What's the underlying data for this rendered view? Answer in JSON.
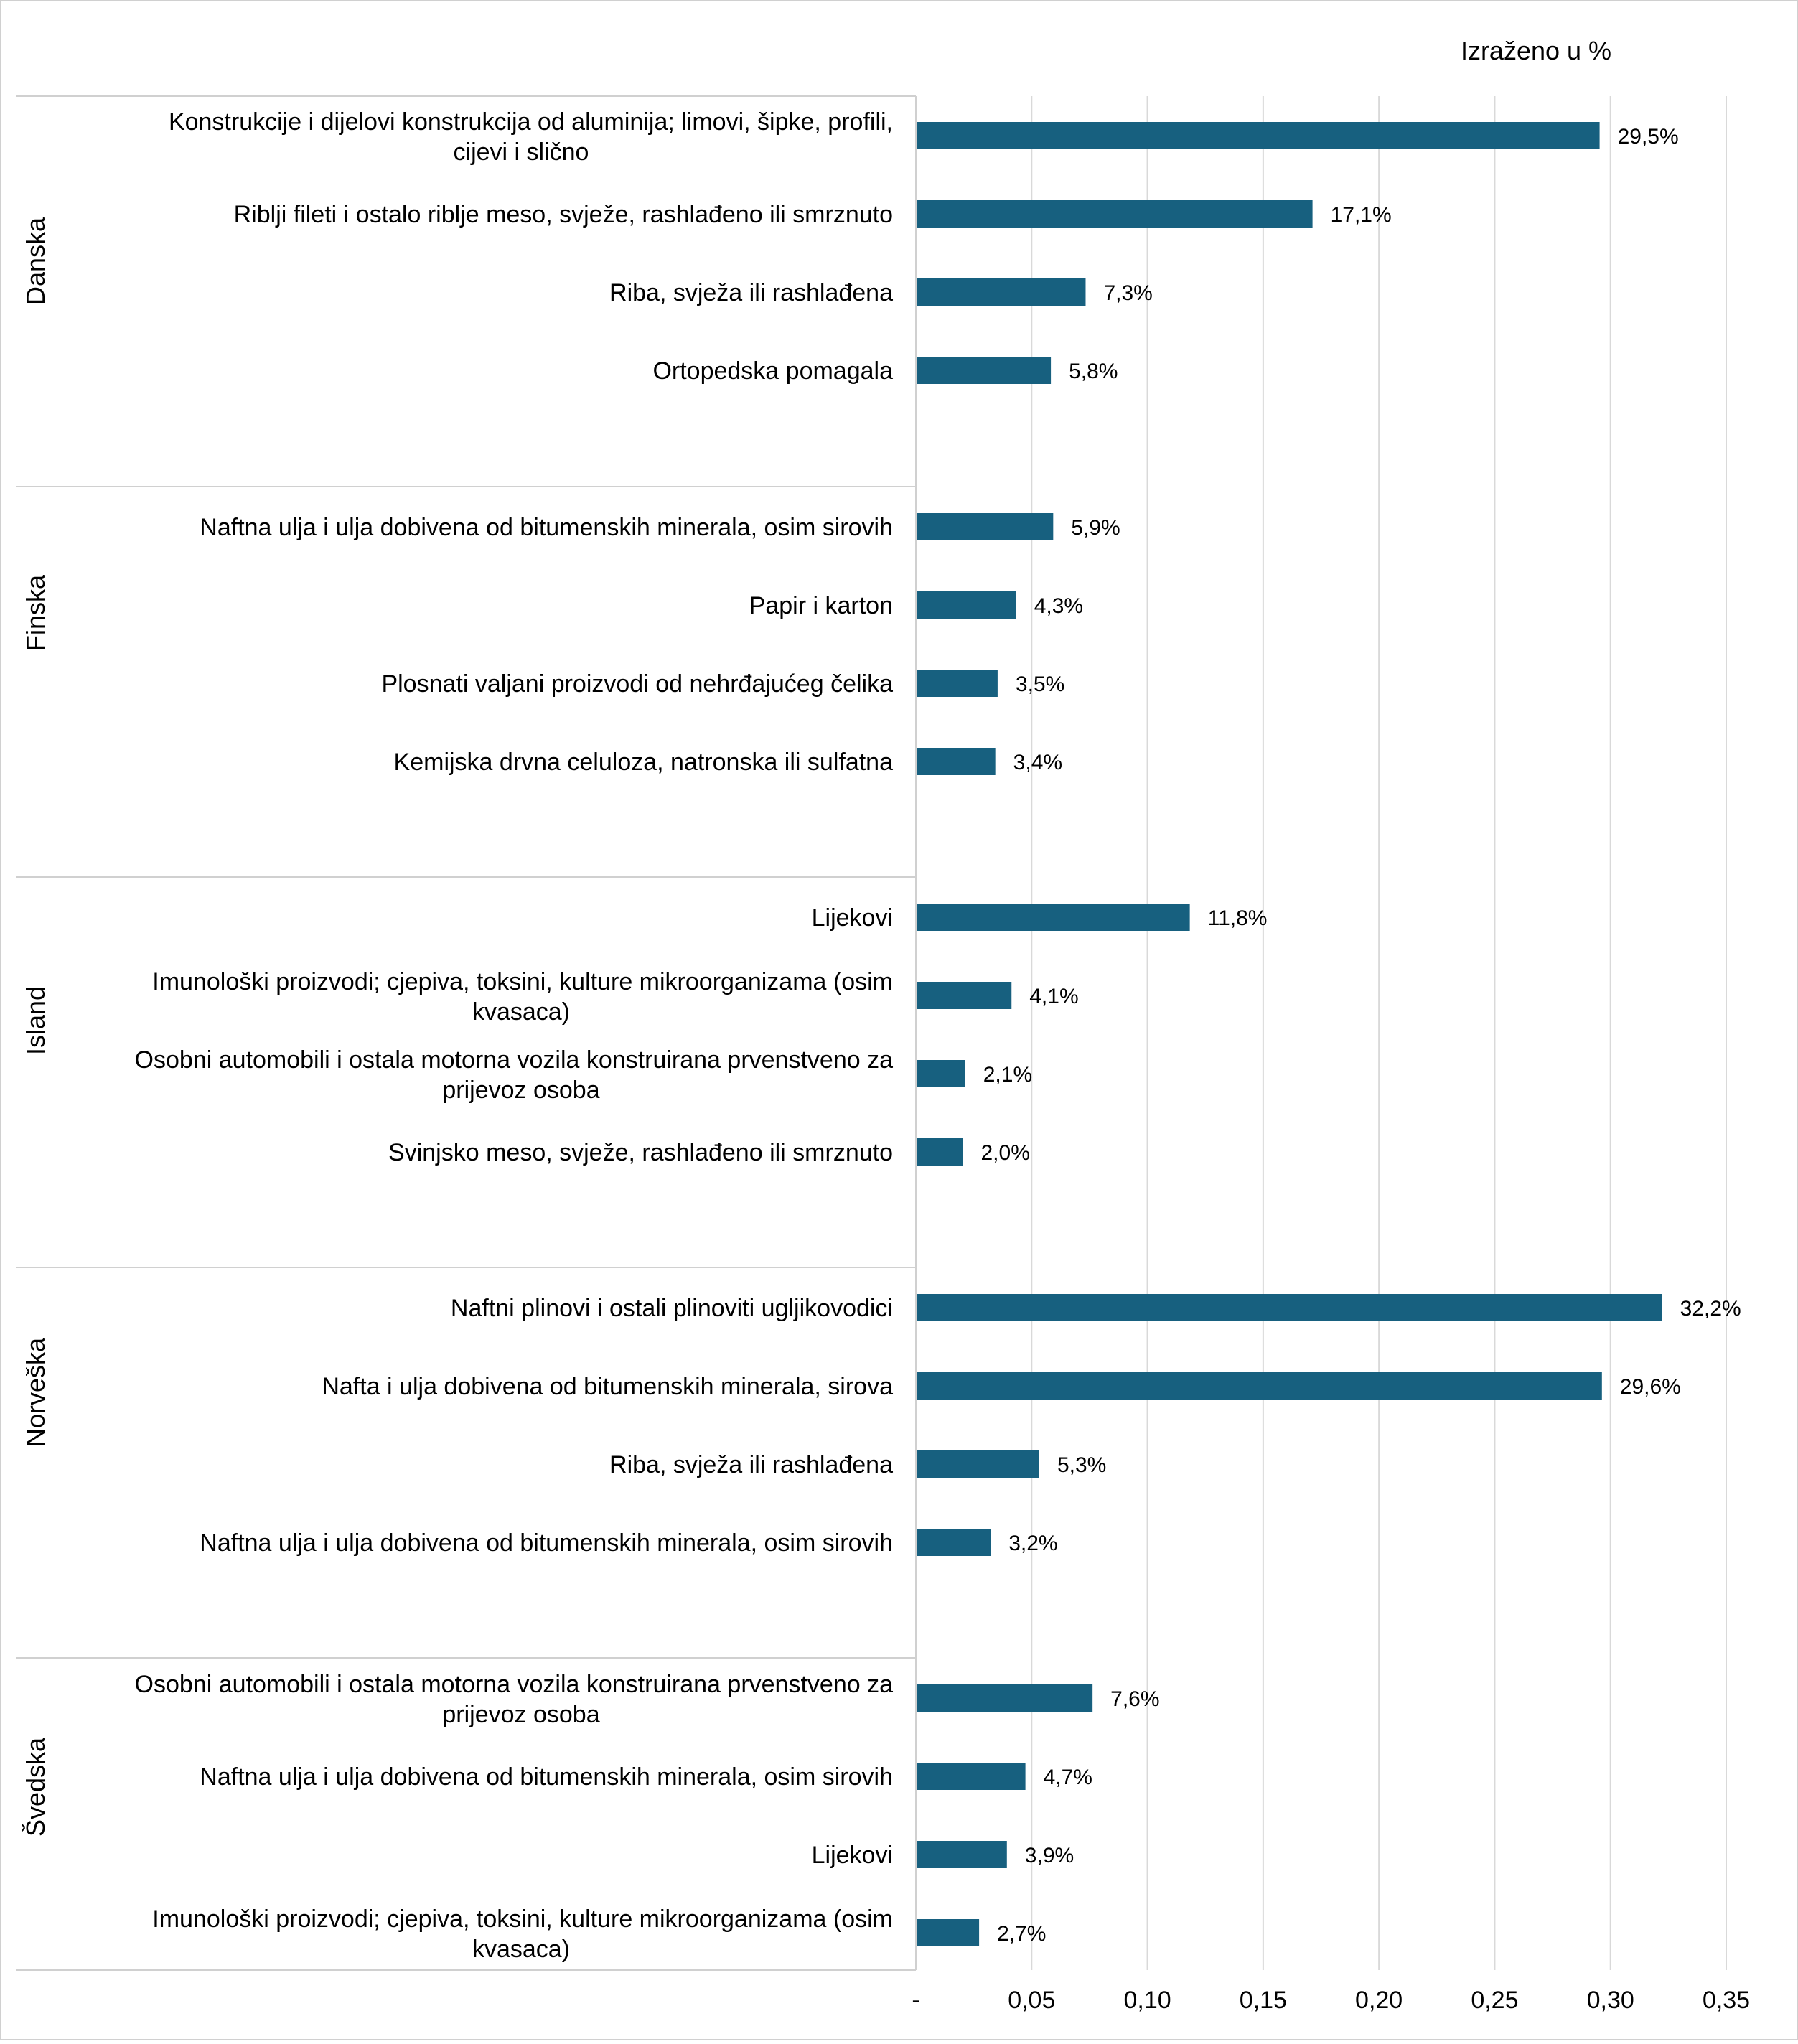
{
  "unit_note": "Izraženo u %",
  "colors": {
    "bar": "#17607f",
    "grid": "#d9d9d9",
    "frame": "#d0d0d0",
    "text": "#000000"
  },
  "chart_data": {
    "type": "bar",
    "orientation": "horizontal",
    "xlim": [
      0,
      0.35
    ],
    "x_ticks": [
      {
        "value": 0,
        "label": "-"
      },
      {
        "value": 0.05,
        "label": "0,05"
      },
      {
        "value": 0.1,
        "label": "0,10"
      },
      {
        "value": 0.15,
        "label": "0,15"
      },
      {
        "value": 0.2,
        "label": "0,20"
      },
      {
        "value": 0.25,
        "label": "0,25"
      },
      {
        "value": 0.3,
        "label": "0,30"
      },
      {
        "value": 0.35,
        "label": "0,35"
      }
    ],
    "grid": true,
    "groups": [
      {
        "name": "Danska",
        "items": [
          {
            "label": [
              "Konstrukcije  i dijelovi konstrukcija od aluminija; limovi, šipke, profili,",
              "cijevi i slično"
            ],
            "value": 0.295,
            "value_label": "29,5%"
          },
          {
            "label": [
              "Riblji fileti i ostalo riblje meso, svježe, rashlađeno ili smrznuto"
            ],
            "value": 0.171,
            "value_label": "17,1%"
          },
          {
            "label": [
              "Riba, svježa ili rashlađena"
            ],
            "value": 0.073,
            "value_label": "7,3%"
          },
          {
            "label": [
              "Ortopedska pomagala"
            ],
            "value": 0.058,
            "value_label": "5,8%"
          }
        ]
      },
      {
        "name": "Finska",
        "items": [
          {
            "label": [
              "Naftna ulja i ulja dobivena od bitumenskih minerala, osim sirovih"
            ],
            "value": 0.059,
            "value_label": "5,9%"
          },
          {
            "label": [
              "Papir i karton"
            ],
            "value": 0.043,
            "value_label": "4,3%"
          },
          {
            "label": [
              "Plosnati valjani proizvodi od nehrđajućeg čelika"
            ],
            "value": 0.035,
            "value_label": "3,5%"
          },
          {
            "label": [
              "Kemijska drvna celuloza, natronska ili sulfatna"
            ],
            "value": 0.034,
            "value_label": "3,4%"
          }
        ]
      },
      {
        "name": "Island",
        "items": [
          {
            "label": [
              "Lijekovi"
            ],
            "value": 0.118,
            "value_label": "11,8%"
          },
          {
            "label": [
              "Imunološki proizvodi; cjepiva, toksini, kulture mikroorganizama (osim",
              "kvasaca)"
            ],
            "value": 0.041,
            "value_label": "4,1%"
          },
          {
            "label": [
              "Osobni automobili i ostala motorna vozila konstruirana prvenstveno za",
              "prijevoz osoba"
            ],
            "value": 0.021,
            "value_label": "2,1%"
          },
          {
            "label": [
              "Svinjsko meso, svježe, rashlađeno ili smrznuto"
            ],
            "value": 0.02,
            "value_label": "2,0%"
          }
        ]
      },
      {
        "name": "Norveška",
        "items": [
          {
            "label": [
              "Naftni plinovi i ostali plinoviti ugljikovodici"
            ],
            "value": 0.322,
            "value_label": "32,2%"
          },
          {
            "label": [
              "Nafta i ulja dobivena od bitumenskih minerala, sirova"
            ],
            "value": 0.296,
            "value_label": "29,6%"
          },
          {
            "label": [
              "Riba, svježa ili rashlađena"
            ],
            "value": 0.053,
            "value_label": "5,3%"
          },
          {
            "label": [
              "Naftna ulja i ulja dobivena od bitumenskih minerala, osim sirovih"
            ],
            "value": 0.032,
            "value_label": "3,2%"
          }
        ]
      },
      {
        "name": "Švedska",
        "items": [
          {
            "label": [
              "Osobni automobili i ostala motorna vozila konstruirana prvenstveno za",
              "prijevoz osoba"
            ],
            "value": 0.076,
            "value_label": "7,6%"
          },
          {
            "label": [
              "Naftna ulja i ulja dobivena od bitumenskih minerala, osim sirovih"
            ],
            "value": 0.047,
            "value_label": "4,7%"
          },
          {
            "label": [
              "Lijekovi"
            ],
            "value": 0.039,
            "value_label": "3,9%"
          },
          {
            "label": [
              "Imunološki proizvodi; cjepiva, toksini, kulture mikroorganizama (osim",
              "kvasaca)"
            ],
            "value": 0.027,
            "value_label": "2,7%"
          }
        ]
      }
    ]
  }
}
